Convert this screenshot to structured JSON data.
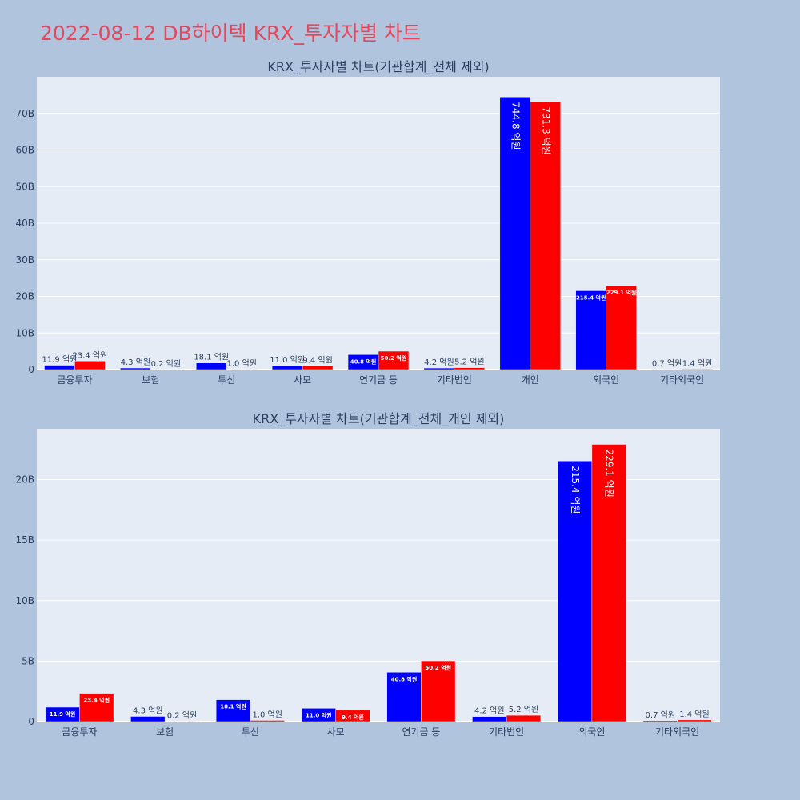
{
  "page_title": "2022-08-12 DB하이텍 KRX_투자자별 차트",
  "colors": {
    "series_a": "#0000ff",
    "series_b": "#ff0000",
    "plot_bg": "#e5ecf6",
    "page_bg": "#b0c4de",
    "title": "#e8465a"
  },
  "chart_data": [
    {
      "type": "bar",
      "title": "KRX_투자자별 차트(기관합계_전체 제외)",
      "categories": [
        "금융투자",
        "보험",
        "투신",
        "사모",
        "연기금 등",
        "기타법인",
        "개인",
        "외국인",
        "기타외국인"
      ],
      "series": [
        {
          "color": "#0000ff",
          "values": [
            1.19,
            0.43,
            1.81,
            1.1,
            4.08,
            0.42,
            74.48,
            21.54,
            0.07
          ],
          "labels": [
            "11.9 억원",
            "4.3 억원",
            "18.1 억원",
            "11.0 억원",
            "40.8 억원",
            "4.2 억원",
            "744.8 억원",
            "215.4 억원",
            "0.7 억원"
          ]
        },
        {
          "color": "#ff0000",
          "values": [
            2.34,
            0.02,
            0.1,
            0.94,
            5.02,
            0.52,
            73.13,
            22.91,
            0.14
          ],
          "labels": [
            "23.4 억원",
            "0.2 억원",
            "1.0 억원",
            "9.4 억원",
            "50.2 억원",
            "5.2 억원",
            "731.3 억원",
            "229.1 억원",
            "1.4 억원"
          ]
        }
      ],
      "ylim": [
        0,
        80
      ],
      "yticks": [
        0,
        10,
        20,
        30,
        40,
        50,
        60,
        70
      ],
      "ytick_labels": [
        "0",
        "10B",
        "20B",
        "30B",
        "40B",
        "50B",
        "60B",
        "70B"
      ],
      "grid": true,
      "legend": "none"
    },
    {
      "type": "bar",
      "title": "KRX_투자자별 차트(기관합계_전체_개인 제외)",
      "categories": [
        "금융투자",
        "보험",
        "투신",
        "사모",
        "연기금 등",
        "기타법인",
        "외국인",
        "기타외국인"
      ],
      "series": [
        {
          "color": "#0000ff",
          "values": [
            1.19,
            0.43,
            1.81,
            1.1,
            4.08,
            0.42,
            21.54,
            0.07
          ],
          "labels": [
            "11.9 억원",
            "4.3 억원",
            "18.1 억원",
            "11.0 억원",
            "40.8 억원",
            "4.2 억원",
            "215.4 억원",
            "0.7 억원"
          ]
        },
        {
          "color": "#ff0000",
          "values": [
            2.34,
            0.02,
            0.1,
            0.94,
            5.02,
            0.52,
            22.91,
            0.14
          ],
          "labels": [
            "23.4 억원",
            "0.2 억원",
            "1.0 억원",
            "9.4 억원",
            "50.2 억원",
            "5.2 억원",
            "229.1 억원",
            "1.4 억원"
          ]
        }
      ],
      "ylim": [
        0,
        24.2
      ],
      "yticks": [
        0,
        5,
        10,
        15,
        20
      ],
      "ytick_labels": [
        "0",
        "5B",
        "10B",
        "15B",
        "20B"
      ],
      "grid": true,
      "legend": "none"
    }
  ]
}
